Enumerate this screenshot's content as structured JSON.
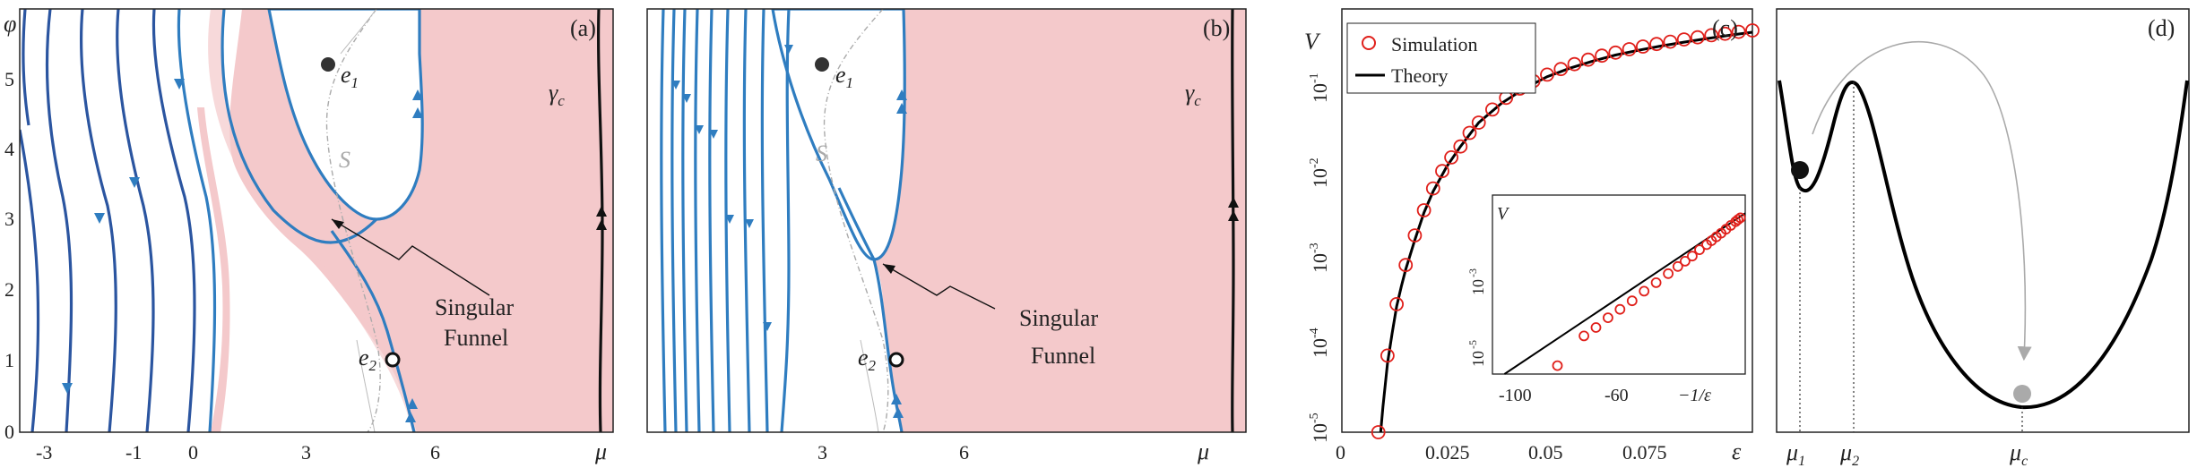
{
  "colors": {
    "funnel_fill": "#f4c9cb",
    "trajectory": "#2f7dc0",
    "trajectory_dark": "#2b55a0",
    "canard": "#111111",
    "surface_s": "#aaaaaa",
    "sim_marker": "#e0201b",
    "theory": "#000000"
  },
  "panel_a": {
    "tag": "(a)",
    "y_axis_label": "φ",
    "x_axis_label": "μ",
    "x_ticks": [
      "-3",
      "-1",
      "0",
      "3",
      "6"
    ],
    "y_ticks": [
      "0",
      "1",
      "2",
      "3",
      "4",
      "5"
    ],
    "point_e1": "e",
    "point_e1_sub": "1",
    "point_e2": "e",
    "point_e2_sub": "2",
    "surface_label": "S",
    "gamma_label": "γ",
    "gamma_sub": "c",
    "funnel_label_1": "Singular",
    "funnel_label_2": "Funnel"
  },
  "panel_b": {
    "tag": "(b)",
    "x_axis_label": "μ",
    "x_ticks": [
      "3",
      "6"
    ],
    "point_e1": "e",
    "point_e1_sub": "1",
    "point_e2": "e",
    "point_e2_sub": "2",
    "surface_label": "S",
    "gamma_label": "γ",
    "gamma_sub": "c",
    "funnel_label_1": "Singular",
    "funnel_label_2": "Funnel"
  },
  "panel_c": {
    "tag": "(c)",
    "y_axis_label": "V",
    "x_axis_label": "ε",
    "x_ticks": [
      "0",
      "0.025",
      "0.05",
      "0.075"
    ],
    "y_ticks": [
      "10",
      "10",
      "10",
      "10",
      "10"
    ],
    "y_tick_exps": [
      "-5",
      "-4",
      "-3",
      "-2",
      "-1"
    ],
    "legend_simulation": "Simulation",
    "legend_theory": "Theory",
    "inset_y_label": "V",
    "inset_x_ticks": [
      "-100",
      "-60"
    ],
    "inset_x_label": "−1/ε",
    "inset_y_ticks": [
      "10",
      "10"
    ],
    "inset_y_tick_exps": [
      "-5",
      "-3"
    ]
  },
  "panel_d": {
    "tag": "(d)",
    "x_labels": [
      "μ",
      "μ",
      "μ"
    ],
    "x_label_subs": [
      "1",
      "2",
      "c"
    ]
  },
  "chart_data": [
    {
      "type": "scatter",
      "title": "",
      "xlabel": "ε",
      "ylabel": "V",
      "log_y": true,
      "xlim": [
        0,
        0.09
      ],
      "ylim": [
        1e-05,
        0.2
      ],
      "series": [
        {
          "name": "Simulation",
          "x": [
            0.008,
            0.01,
            0.012,
            0.014,
            0.016,
            0.018,
            0.02,
            0.022,
            0.024,
            0.026,
            0.028,
            0.03,
            0.033,
            0.036,
            0.039,
            0.042,
            0.045,
            0.048,
            0.051,
            0.054,
            0.057,
            0.06,
            0.063,
            0.066,
            0.069,
            0.072,
            0.075,
            0.078,
            0.081,
            0.084,
            0.087,
            0.09
          ],
          "y": [
            1e-05,
            6e-05,
            0.0002,
            0.0005,
            0.001,
            0.0018,
            0.003,
            0.0045,
            0.0062,
            0.008,
            0.011,
            0.014,
            0.019,
            0.025,
            0.031,
            0.037,
            0.043,
            0.049,
            0.055,
            0.061,
            0.067,
            0.072,
            0.078,
            0.083,
            0.088,
            0.093,
            0.098,
            0.103,
            0.108,
            0.112,
            0.117,
            0.121
          ]
        },
        {
          "name": "Theory",
          "x": [
            0.0085,
            0.009,
            0.01,
            0.011,
            0.012,
            0.013,
            0.014,
            0.016,
            0.018,
            0.02,
            0.023,
            0.026,
            0.03,
            0.035,
            0.04,
            0.045,
            0.05,
            0.055,
            0.06,
            0.065,
            0.07,
            0.075,
            0.08,
            0.085,
            0.09
          ],
          "y": [
            1e-05,
            1.8e-05,
            5e-05,
            0.0001,
            0.00019,
            0.0003,
            0.00045,
            0.0009,
            0.0017,
            0.0028,
            0.005,
            0.008,
            0.014,
            0.022,
            0.031,
            0.041,
            0.05,
            0.059,
            0.068,
            0.076,
            0.084,
            0.092,
            0.1,
            0.108,
            0.116
          ]
        }
      ]
    },
    {
      "type": "scatter",
      "title": "",
      "xlabel": "−1/ε",
      "ylabel": "V",
      "log_y": true,
      "xlim": [
        -115,
        -10
      ],
      "ylim": [
        6e-06,
        0.3
      ],
      "series": [
        {
          "name": "Simulation",
          "x": [
            -88,
            -77,
            -72,
            -67,
            -62,
            -57,
            -52,
            -47,
            -42,
            -38,
            -35,
            -32,
            -29,
            -26,
            -24,
            -22,
            -20,
            -18,
            -16,
            -14,
            -13,
            -12
          ],
          "y": [
            1e-05,
            6e-05,
            0.0001,
            0.00018,
            0.0003,
            0.0005,
            0.0009,
            0.0015,
            0.0026,
            0.004,
            0.0055,
            0.0075,
            0.011,
            0.015,
            0.019,
            0.024,
            0.03,
            0.038,
            0.048,
            0.06,
            0.068,
            0.076
          ]
        },
        {
          "name": "Theory",
          "x": [
            -110,
            -10
          ],
          "y": [
            6e-06,
            0.1
          ]
        }
      ]
    }
  ]
}
